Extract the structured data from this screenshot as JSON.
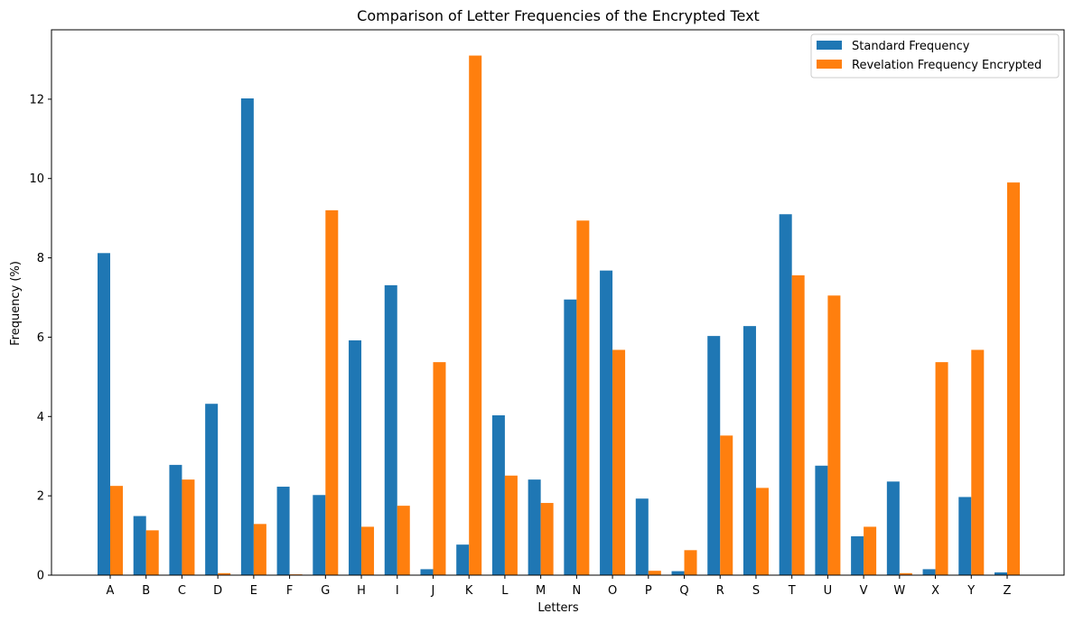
{
  "chart_data": {
    "type": "bar",
    "title": "Comparison of Letter Frequencies of the Encrypted Text",
    "xlabel": "Letters",
    "ylabel": "Frequency (%)",
    "ylim": [
      0,
      13.75
    ],
    "yticks": [
      "0",
      "2",
      "4",
      "6",
      "8",
      "10",
      "12"
    ],
    "legend_position": "top-right",
    "grid": false,
    "categories": [
      "A",
      "B",
      "C",
      "D",
      "E",
      "F",
      "G",
      "H",
      "I",
      "J",
      "K",
      "L",
      "M",
      "N",
      "O",
      "P",
      "Q",
      "R",
      "S",
      "T",
      "U",
      "V",
      "W",
      "X",
      "Y",
      "Z"
    ],
    "series": [
      {
        "name": "Standard Frequency",
        "color": "#1f77b4",
        "values": [
          8.12,
          1.49,
          2.78,
          4.32,
          12.02,
          2.23,
          2.02,
          5.92,
          7.31,
          0.15,
          0.77,
          4.03,
          2.41,
          6.95,
          7.68,
          1.93,
          0.1,
          6.03,
          6.28,
          9.1,
          2.76,
          0.98,
          2.36,
          0.15,
          1.97,
          0.07
        ]
      },
      {
        "name": "Revelation Frequency Encrypted",
        "color": "#ff7f0e",
        "values": [
          2.25,
          1.13,
          2.41,
          0.05,
          1.29,
          0.02,
          9.2,
          1.22,
          1.75,
          5.37,
          13.1,
          2.51,
          1.82,
          8.94,
          5.68,
          0.11,
          0.63,
          3.52,
          2.2,
          7.56,
          7.05,
          1.22,
          0.05,
          5.37,
          5.68,
          9.9
        ]
      }
    ]
  }
}
